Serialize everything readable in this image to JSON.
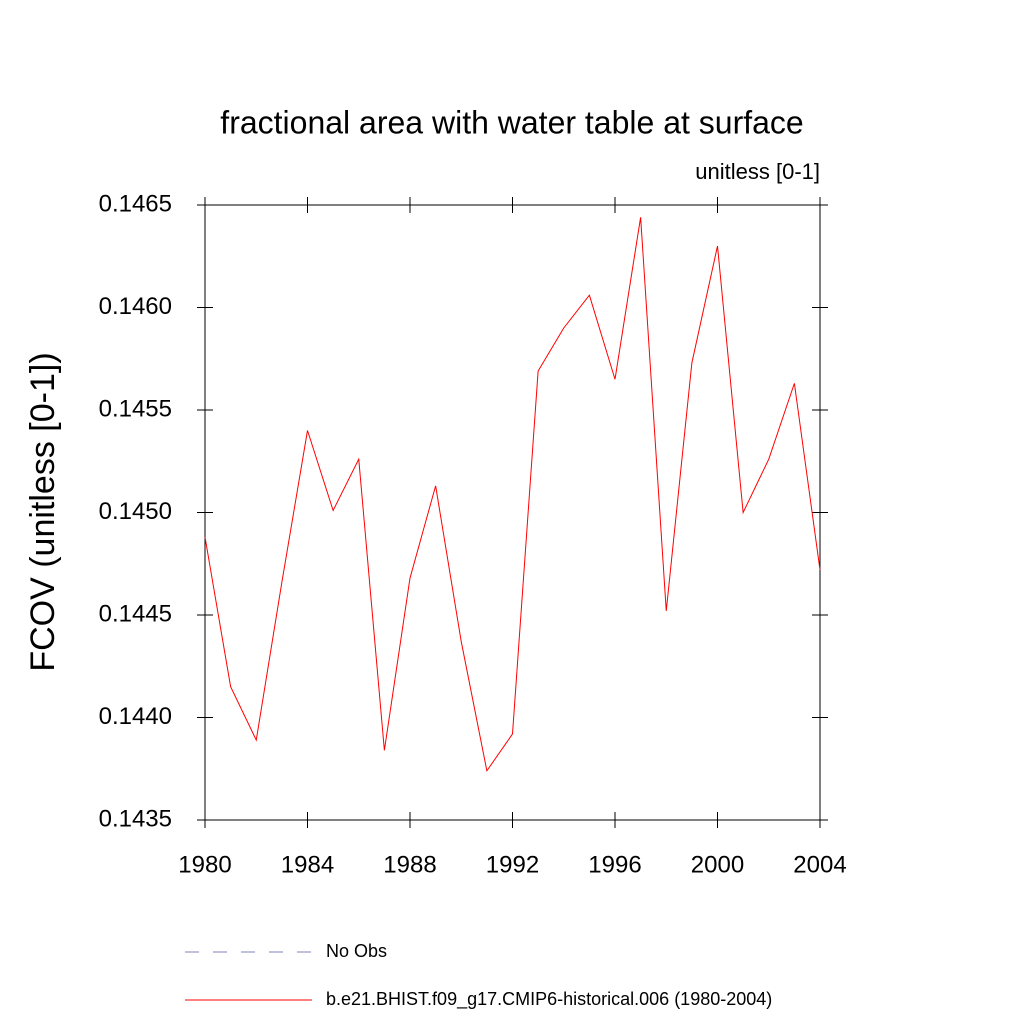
{
  "chart_data": {
    "type": "line",
    "title": "fractional area with water table at surface",
    "subtitle": "unitless [0-1]",
    "ylabel": "FCOV  (unitless [0-1])",
    "x": [
      1980,
      1981,
      1982,
      1983,
      1984,
      1985,
      1986,
      1987,
      1988,
      1989,
      1990,
      1991,
      1992,
      1993,
      1994,
      1995,
      1996,
      1997,
      1998,
      1999,
      2000,
      2001,
      2002,
      2003,
      2004
    ],
    "series": [
      {
        "name": "No Obs",
        "color": "#8080c0",
        "dash": true,
        "values": [
          null,
          null,
          null,
          null,
          null,
          null,
          null,
          null,
          null,
          null,
          null,
          null,
          null,
          null,
          null,
          null,
          null,
          null,
          null,
          null,
          null,
          null,
          null,
          null,
          null
        ]
      },
      {
        "name": "b.e21.BHIST.f09_g17.CMIP6-historical.006 (1980-2004)",
        "color": "#ff0000",
        "dash": false,
        "values": [
          0.14488,
          0.14415,
          0.14389,
          0.14466,
          0.1454,
          0.14501,
          0.14526,
          0.14384,
          0.14468,
          0.14513,
          0.14437,
          0.14374,
          0.14392,
          0.14569,
          0.1459,
          0.14606,
          0.14565,
          0.14644,
          0.14452,
          0.14573,
          0.1463,
          0.145,
          0.14526,
          0.14563,
          0.14472
        ]
      }
    ],
    "xlim": [
      1980,
      2004
    ],
    "xticks": [
      1980,
      1984,
      1988,
      1992,
      1996,
      2000,
      2004
    ],
    "ylim": [
      0.1435,
      0.1465
    ],
    "yticks": [
      0.1435,
      {
        "value": 0.144,
        "label": "0.1440"
      },
      0.1445,
      {
        "value": 0.145,
        "label": "0.1450"
      },
      0.1455,
      {
        "value": 0.146,
        "label": "0.1460"
      },
      0.1465
    ],
    "grid": false
  }
}
